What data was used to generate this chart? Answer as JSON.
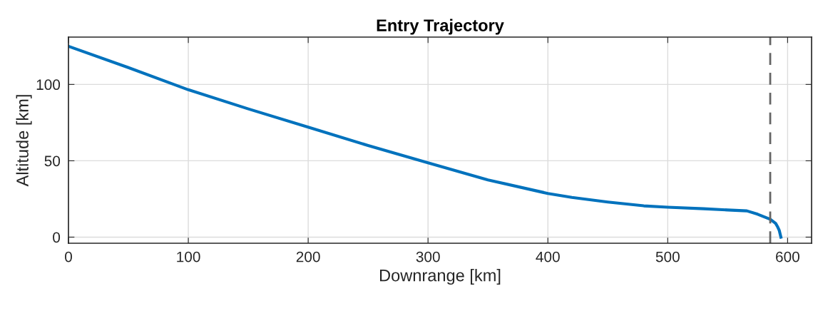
{
  "chart_data": {
    "type": "line",
    "title": "Entry Trajectory",
    "xlabel": "Downrange [km]",
    "ylabel": "Altitude [km]",
    "x": [
      0,
      50,
      100,
      150,
      200,
      250,
      300,
      350,
      400,
      420,
      450,
      480,
      500,
      530,
      550,
      566,
      575,
      585.5,
      590,
      591.5,
      593,
      594.4
    ],
    "series": [
      {
        "color": "#0072bd",
        "values": [
          125,
          111,
          96.5,
          84,
          72,
          60,
          48.7,
          37.5,
          28.6,
          26,
          23,
          20.5,
          19.6,
          18.6,
          17.8,
          17.2,
          15,
          11.7,
          9,
          7,
          4.5,
          0
        ]
      }
    ],
    "xlim": [
      0,
      620
    ],
    "ylim": [
      -4,
      131
    ],
    "xticks": [
      0,
      100,
      200,
      300,
      400,
      500,
      600
    ],
    "yticks": [
      0,
      50,
      100
    ],
    "grid": true,
    "marker": "none",
    "line_style": "solid",
    "ref_lines": [
      {
        "axis": "x",
        "value": 585.5,
        "color": "#666666",
        "line_style": "dashed"
      }
    ]
  }
}
